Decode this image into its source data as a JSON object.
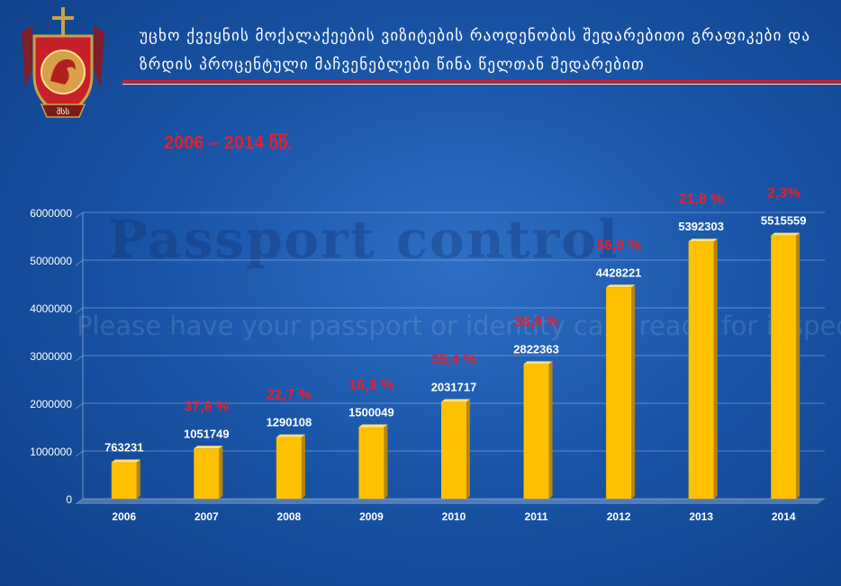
{
  "header": {
    "title": "უცხო ქვეყნის მოქალაქეების ვიზიტების რაოდენობის შედარებითი გრაფიკები და ზრდის პროცენტული მაჩვენებლები წინა წელთან შედარებით"
  },
  "emblem": {
    "ribbon_text": "შსს"
  },
  "background": {
    "sign_text": "Passport control",
    "notice_text": "Please have your passport or identity card ready for inspection"
  },
  "subtitle": "2006 – 2014 წწ.",
  "colors": {
    "bar": "#ffc000",
    "growth_label": "#e3202b",
    "accent_line": "#c8202a"
  },
  "chart_data": {
    "type": "bar",
    "categories": [
      "2006",
      "2007",
      "2008",
      "2009",
      "2010",
      "2011",
      "2012",
      "2013",
      "2014"
    ],
    "values": [
      763231,
      1051749,
      1290108,
      1500049,
      2031717,
      2822363,
      4428221,
      5392303,
      5515559
    ],
    "value_labels": [
      "763231",
      "1051749",
      "1290108",
      "1500049",
      "2031717",
      "2822363",
      "4428221",
      "5392303",
      "5515559"
    ],
    "growth_labels": [
      "",
      "37,8 %",
      "22,7 %",
      "16,3 %",
      "35,4 %",
      "38,9 %",
      "56,9 %",
      "21,8 %",
      "2,3%"
    ],
    "ylim": [
      0,
      6000000
    ],
    "yticks": [
      "0",
      "1000000",
      "2000000",
      "3000000",
      "4000000",
      "5000000",
      "6000000"
    ],
    "grid": true,
    "title": "",
    "xlabel": "",
    "ylabel": ""
  }
}
